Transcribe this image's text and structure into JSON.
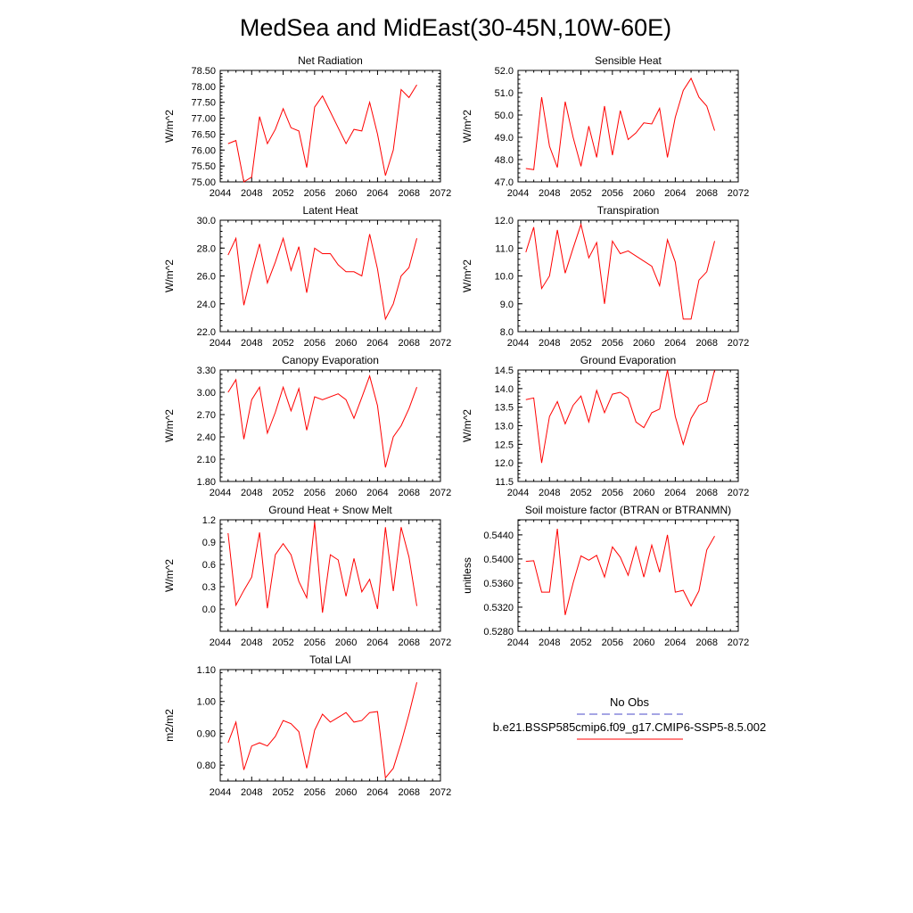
{
  "title": "MedSea and MidEast(30-45N,10W-60E)",
  "line_color": "#ff0000",
  "obs_color": "#4b4bc8",
  "x_ticks": [
    "2044",
    "2048",
    "2052",
    "2056",
    "2060",
    "2064",
    "2068",
    "2072"
  ],
  "legend": {
    "obs_label": "No Obs",
    "model_label": "b.e21.BSSP585cmip6.f09_g17.CMIP6-SSP5-8.5.002"
  },
  "chart_data": [
    {
      "type": "line",
      "title": "Net Radiation",
      "ylabel": "W/m^2",
      "ylim": [
        75.0,
        78.5
      ],
      "xlim": [
        2044,
        2072
      ],
      "y_ticks": [
        "75.00",
        "75.50",
        "76.00",
        "76.50",
        "77.00",
        "77.50",
        "78.00",
        "78.50"
      ],
      "x": [
        2045,
        2046,
        2047,
        2048,
        2049,
        2050,
        2051,
        2052,
        2053,
        2054,
        2055,
        2056,
        2057,
        2058,
        2059,
        2060,
        2061,
        2062,
        2063,
        2064,
        2065,
        2066,
        2067,
        2068,
        2069
      ],
      "values": [
        76.2,
        76.3,
        75.0,
        75.15,
        77.05,
        76.2,
        76.65,
        77.3,
        76.7,
        76.6,
        75.45,
        77.35,
        77.7,
        77.2,
        76.7,
        76.2,
        76.65,
        76.6,
        77.5,
        76.5,
        75.2,
        76.0,
        77.9,
        77.65,
        78.05
      ]
    },
    {
      "type": "line",
      "title": "Sensible Heat",
      "ylabel": "W/m^2",
      "ylim": [
        47.0,
        52.0
      ],
      "xlim": [
        2044,
        2072
      ],
      "y_ticks": [
        "47.0",
        "48.0",
        "49.0",
        "50.0",
        "51.0",
        "52.0"
      ],
      "x": [
        2045,
        2046,
        2047,
        2048,
        2049,
        2050,
        2051,
        2052,
        2053,
        2054,
        2055,
        2056,
        2057,
        2058,
        2059,
        2060,
        2061,
        2062,
        2063,
        2064,
        2065,
        2066,
        2067,
        2068,
        2069
      ],
      "values": [
        47.6,
        47.55,
        50.8,
        48.6,
        47.65,
        50.6,
        49.0,
        47.7,
        49.5,
        48.1,
        50.4,
        48.2,
        50.2,
        48.9,
        49.2,
        49.65,
        49.6,
        50.3,
        48.1,
        49.9,
        51.1,
        51.65,
        50.8,
        50.4,
        49.3
      ]
    },
    {
      "type": "line",
      "title": "Latent Heat",
      "ylabel": "W/m^2",
      "ylim": [
        22.0,
        30.0
      ],
      "xlim": [
        2044,
        2072
      ],
      "y_ticks": [
        "22.0",
        "24.0",
        "26.0",
        "28.0",
        "30.0"
      ],
      "x": [
        2045,
        2046,
        2047,
        2048,
        2049,
        2050,
        2051,
        2052,
        2053,
        2054,
        2055,
        2056,
        2057,
        2058,
        2059,
        2060,
        2061,
        2062,
        2063,
        2064,
        2065,
        2066,
        2067,
        2068,
        2069
      ],
      "values": [
        27.5,
        28.7,
        23.9,
        26.2,
        28.3,
        25.5,
        27.0,
        28.7,
        26.4,
        28.1,
        24.8,
        28.0,
        27.6,
        27.6,
        26.8,
        26.3,
        26.3,
        26.0,
        29.0,
        26.5,
        22.9,
        24.0,
        26.0,
        26.6,
        28.7
      ]
    },
    {
      "type": "line",
      "title": "Transpiration",
      "ylabel": "W/m^2",
      "ylim": [
        8.0,
        12.0
      ],
      "xlim": [
        2044,
        2072
      ],
      "y_ticks": [
        "8.0",
        "9.0",
        "10.0",
        "11.0",
        "12.0"
      ],
      "x": [
        2045,
        2046,
        2047,
        2048,
        2049,
        2050,
        2051,
        2052,
        2053,
        2054,
        2055,
        2056,
        2057,
        2058,
        2061,
        2062,
        2063,
        2064,
        2065,
        2066,
        2067,
        2068,
        2069
      ],
      "values": [
        10.85,
        11.75,
        9.55,
        10.0,
        11.65,
        10.1,
        11.0,
        11.85,
        10.65,
        11.2,
        9.0,
        11.25,
        10.8,
        10.9,
        10.35,
        9.65,
        11.3,
        10.5,
        8.45,
        8.45,
        9.85,
        10.15,
        11.25
      ]
    },
    {
      "type": "line",
      "title": "Canopy Evaporation",
      "ylabel": "W/m^2",
      "ylim": [
        1.8,
        3.3
      ],
      "xlim": [
        2044,
        2072
      ],
      "y_ticks": [
        "1.80",
        "2.10",
        "2.40",
        "2.70",
        "3.00",
        "3.30"
      ],
      "x": [
        2045,
        2046,
        2047,
        2048,
        2049,
        2050,
        2051,
        2052,
        2053,
        2054,
        2055,
        2056,
        2057,
        2059,
        2060,
        2061,
        2062,
        2063,
        2064,
        2065,
        2066,
        2067,
        2068,
        2069
      ],
      "values": [
        3.0,
        3.17,
        2.37,
        2.9,
        3.07,
        2.45,
        2.73,
        3.07,
        2.75,
        3.05,
        2.49,
        2.94,
        2.9,
        2.98,
        2.9,
        2.65,
        2.93,
        3.22,
        2.82,
        1.99,
        2.4,
        2.55,
        2.78,
        3.07
      ]
    },
    {
      "type": "line",
      "title": "Ground Evaporation",
      "ylabel": "W/m^2",
      "ylim": [
        11.5,
        14.5
      ],
      "xlim": [
        2044,
        2072
      ],
      "y_ticks": [
        "11.5",
        "12.0",
        "12.5",
        "13.0",
        "13.5",
        "14.0",
        "14.5"
      ],
      "x": [
        2045,
        2046,
        2047,
        2048,
        2049,
        2050,
        2051,
        2052,
        2053,
        2054,
        2055,
        2056,
        2057,
        2058,
        2059,
        2060,
        2061,
        2062,
        2063,
        2064,
        2065,
        2066,
        2067,
        2068,
        2069
      ],
      "values": [
        13.7,
        13.75,
        12.0,
        13.25,
        13.65,
        13.05,
        13.55,
        13.8,
        13.1,
        13.95,
        13.35,
        13.85,
        13.9,
        13.75,
        13.1,
        12.95,
        13.35,
        13.45,
        14.5,
        13.25,
        12.5,
        13.2,
        13.55,
        13.65,
        14.5
      ]
    },
    {
      "type": "line",
      "title": "Ground Heat + Snow Melt",
      "ylabel": "W/m^2",
      "ylim": [
        -0.3,
        1.2
      ],
      "xlim": [
        2044,
        2072
      ],
      "y_ticks": [
        "0.0",
        "0.3",
        "0.6",
        "0.9",
        "1.2"
      ],
      "y_tick_values": [
        0.0,
        0.3,
        0.6,
        0.9,
        1.2
      ],
      "x": [
        2045,
        2046,
        2047,
        2048,
        2049,
        2050,
        2051,
        2052,
        2053,
        2054,
        2055,
        2056,
        2057,
        2058,
        2059,
        2060,
        2061,
        2062,
        2063,
        2064,
        2065,
        2066,
        2067,
        2068,
        2069
      ],
      "values": [
        1.02,
        0.05,
        0.25,
        0.43,
        1.03,
        0.01,
        0.73,
        0.88,
        0.73,
        0.37,
        0.15,
        1.17,
        -0.05,
        0.73,
        0.66,
        0.17,
        0.68,
        0.23,
        0.4,
        0.0,
        1.1,
        0.24,
        1.1,
        0.7,
        0.04
      ]
    },
    {
      "type": "line",
      "title": "Soil moisture factor (BTRAN or BTRANMN)",
      "ylabel": "unitless",
      "ylim": [
        0.528,
        0.5465
      ],
      "xlim": [
        2044,
        2072
      ],
      "y_ticks": [
        "0.5280",
        "0.5320",
        "0.5360",
        "0.5400",
        "0.5440"
      ],
      "y_tick_values": [
        0.528,
        0.532,
        0.536,
        0.54,
        0.544
      ],
      "x": [
        2045,
        2046,
        2047,
        2048,
        2049,
        2050,
        2051,
        2052,
        2053,
        2054,
        2055,
        2056,
        2057,
        2058,
        2059,
        2060,
        2061,
        2062,
        2063,
        2064,
        2065,
        2066,
        2067,
        2068,
        2069
      ],
      "values": [
        0.5396,
        0.5397,
        0.5345,
        0.5345,
        0.545,
        0.5307,
        0.536,
        0.5405,
        0.5398,
        0.5406,
        0.537,
        0.542,
        0.5403,
        0.5373,
        0.542,
        0.537,
        0.5423,
        0.5378,
        0.544,
        0.5345,
        0.5348,
        0.5322,
        0.5347,
        0.5415,
        0.5438
      ]
    },
    {
      "type": "line",
      "title": "Total LAI",
      "ylabel": "m2/m2",
      "ylim": [
        0.75,
        1.1
      ],
      "xlim": [
        2044,
        2072
      ],
      "y_ticks": [
        "0.80",
        "0.90",
        "1.00",
        "1.10"
      ],
      "y_tick_values": [
        0.8,
        0.9,
        1.0,
        1.1
      ],
      "x": [
        2045,
        2046,
        2047,
        2048,
        2049,
        2050,
        2051,
        2052,
        2053,
        2054,
        2055,
        2056,
        2057,
        2058,
        2059,
        2060,
        2061,
        2062,
        2063,
        2064,
        2065,
        2066,
        2067,
        2068,
        2069
      ],
      "values": [
        0.87,
        0.935,
        0.785,
        0.86,
        0.87,
        0.86,
        0.89,
        0.94,
        0.93,
        0.905,
        0.79,
        0.91,
        0.96,
        0.935,
        0.95,
        0.965,
        0.935,
        0.94,
        0.965,
        0.968,
        0.76,
        0.79,
        0.87,
        0.96,
        1.06
      ]
    }
  ]
}
